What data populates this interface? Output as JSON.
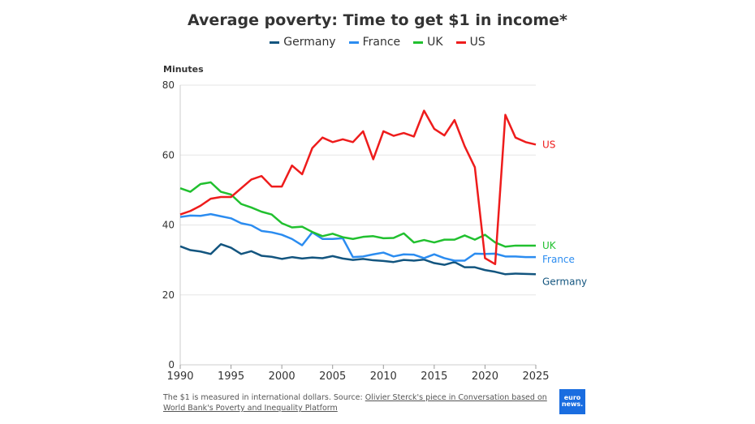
{
  "chart_data": {
    "type": "line",
    "title": "Average poverty: Time to get $1 in income*",
    "ylabel": "Minutes",
    "xlabel": "",
    "xlim": [
      1990,
      2025
    ],
    "ylim": [
      0,
      80
    ],
    "xticks": [
      1990,
      1995,
      2000,
      2005,
      2010,
      2015,
      2020,
      2025
    ],
    "yticks": [
      0,
      20,
      40,
      60,
      80
    ],
    "grid": "horizontal",
    "legend": "top",
    "x": [
      1990,
      1991,
      1992,
      1993,
      1994,
      1995,
      1996,
      1997,
      1998,
      1999,
      2000,
      2001,
      2002,
      2003,
      2004,
      2005,
      2006,
      2007,
      2008,
      2009,
      2010,
      2011,
      2012,
      2013,
      2014,
      2015,
      2016,
      2017,
      2018,
      2019,
      2020,
      2021,
      2022,
      2023,
      2024,
      2025
    ],
    "series": [
      {
        "name": "Germany",
        "color": "#13557f",
        "values": [
          33.9,
          32.8,
          32.4,
          31.7,
          34.5,
          33.5,
          31.7,
          32.5,
          31.2,
          30.9,
          30.3,
          30.8,
          30.4,
          30.7,
          30.5,
          31.1,
          30.4,
          30.0,
          30.3,
          29.9,
          29.7,
          29.4,
          30.0,
          29.8,
          30.1,
          29.1,
          28.6,
          29.4,
          27.9,
          27.9,
          27.1,
          26.6,
          25.9,
          26.1,
          26.0,
          25.9
        ]
      },
      {
        "name": "France",
        "color": "#2b8cf0",
        "values": [
          42.3,
          42.7,
          42.6,
          43.1,
          42.5,
          41.9,
          40.5,
          39.9,
          38.3,
          37.9,
          37.2,
          36.0,
          34.2,
          37.9,
          36.0,
          36.0,
          36.2,
          30.8,
          31.0,
          31.6,
          32.1,
          31.0,
          31.6,
          31.5,
          30.5,
          31.6,
          30.5,
          29.8,
          29.8,
          31.8,
          31.7,
          31.8,
          31.0,
          31.0,
          30.8,
          30.8
        ]
      },
      {
        "name": "UK",
        "color": "#21c02f",
        "values": [
          50.5,
          49.5,
          51.7,
          52.2,
          49.5,
          48.7,
          46.0,
          45.0,
          43.8,
          43.0,
          40.5,
          39.3,
          39.5,
          38.0,
          36.8,
          37.5,
          36.5,
          36.0,
          36.6,
          36.8,
          36.2,
          36.3,
          37.6,
          35.0,
          35.7,
          35.0,
          35.8,
          35.8,
          37.0,
          35.8,
          37.2,
          35.0,
          33.8,
          34.1,
          34.1,
          34.1
        ]
      },
      {
        "name": "US",
        "color": "#ee1c1c",
        "values": [
          43.0,
          44.0,
          45.5,
          47.5,
          48.0,
          48.0,
          50.5,
          53.0,
          54.0,
          51.0,
          51.0,
          57.0,
          54.5,
          62.0,
          65.0,
          63.7,
          64.5,
          63.7,
          66.8,
          58.8,
          66.8,
          65.5,
          66.3,
          65.3,
          72.7,
          67.5,
          65.6,
          70.0,
          62.5,
          56.5,
          30.5,
          28.8,
          71.5,
          65.0,
          63.7,
          63.0
        ]
      }
    ]
  },
  "footnote": {
    "text": "The $1 is measured in international dollars. Source: ",
    "link": "Olivier Sterck's piece in Conversation based on World Bank's Poverty and Inequality Platform"
  },
  "logo": {
    "line1": "euro",
    "line2": "news."
  }
}
